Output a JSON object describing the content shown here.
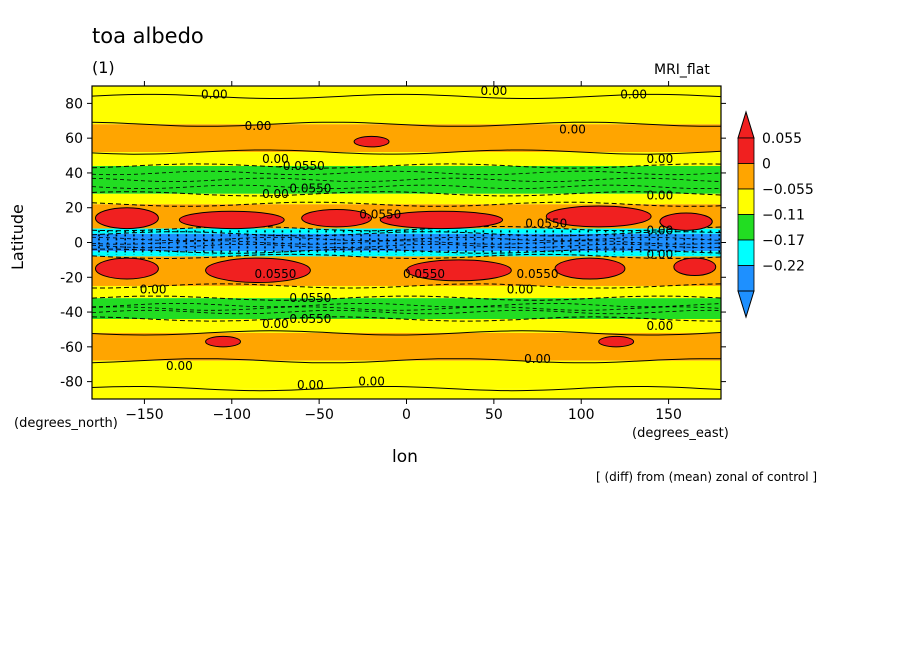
{
  "header": {
    "title": "toa albedo",
    "panel": "(1)",
    "model": "MRI_flat"
  },
  "axes": {
    "ylabel": "Latitude",
    "xlabel": "lon",
    "yunits": "(degrees_north)",
    "xunits": "(degrees_east)"
  },
  "footer": "[ (diff) from (mean) zonal of control ]",
  "chart_data": {
    "type": "heatmap",
    "subtype": "filled-contour",
    "title": "toa albedo",
    "xlabel": "lon",
    "ylabel": "Latitude",
    "xlim": [
      -180,
      180
    ],
    "ylim": [
      -90,
      90
    ],
    "xticks": [
      -150,
      -100,
      -50,
      0,
      50,
      100,
      150
    ],
    "yticks": [
      -80,
      -60,
      -40,
      -20,
      0,
      20,
      40,
      60,
      80
    ],
    "colors": {
      "high": "#f02020",
      "pos": "#ffa500",
      "neutral": "#ffff00",
      "neg1": "#22dd22",
      "neg2": "#00ffff",
      "neg3": "#1e90ff"
    },
    "colorbar": {
      "labels": [
        "0.055",
        "0",
        "-0.055",
        "-0.11",
        "-0.17",
        "-0.22"
      ],
      "segments": [
        {
          "name": "high",
          "color": "#f02020"
        },
        {
          "name": "pos",
          "color": "#ffa500"
        },
        {
          "name": "neutral",
          "color": "#ffff00"
        },
        {
          "name": "neg1",
          "color": "#22dd22"
        },
        {
          "name": "neg2",
          "color": "#00ffff"
        },
        {
          "name": "neg3",
          "color": "#1e90ff"
        }
      ]
    },
    "bands": [
      {
        "lat": [
          84,
          90
        ],
        "cls": "neutral"
      },
      {
        "lat": [
          68,
          84
        ],
        "cls": "neutral"
      },
      {
        "lat": [
          52,
          68
        ],
        "cls": "pos"
      },
      {
        "lat": [
          44,
          52
        ],
        "cls": "neutral"
      },
      {
        "lat": [
          28,
          44
        ],
        "cls": "neg1"
      },
      {
        "lat": [
          22,
          28
        ],
        "cls": "neutral"
      },
      {
        "lat": [
          8,
          22
        ],
        "cls": "pos"
      },
      {
        "lat": [
          5,
          8
        ],
        "cls": "neg2"
      },
      {
        "lat": [
          -5,
          5
        ],
        "cls": "neg3"
      },
      {
        "lat": [
          -8,
          -5
        ],
        "cls": "neg2"
      },
      {
        "lat": [
          -25,
          -8
        ],
        "cls": "pos"
      },
      {
        "lat": [
          -32,
          -25
        ],
        "cls": "neutral"
      },
      {
        "lat": [
          -44,
          -32
        ],
        "cls": "neg1"
      },
      {
        "lat": [
          -52,
          -44
        ],
        "cls": "neutral"
      },
      {
        "lat": [
          -68,
          -52
        ],
        "cls": "pos"
      },
      {
        "lat": [
          -84,
          -68
        ],
        "cls": "neutral"
      },
      {
        "lat": [
          -90,
          -84
        ],
        "cls": "neutral"
      }
    ],
    "blobs": [
      {
        "lon": -160,
        "lat": 14,
        "rlon": 18,
        "rlat": 6,
        "cls": "high"
      },
      {
        "lon": -100,
        "lat": 13,
        "rlon": 30,
        "rlat": 5,
        "cls": "high"
      },
      {
        "lon": -40,
        "lat": 14,
        "rlon": 20,
        "rlat": 5,
        "cls": "high"
      },
      {
        "lon": 20,
        "lat": 13,
        "rlon": 35,
        "rlat": 5,
        "cls": "high"
      },
      {
        "lon": 110,
        "lat": 15,
        "rlon": 30,
        "rlat": 6,
        "cls": "high"
      },
      {
        "lon": 160,
        "lat": 12,
        "rlon": 15,
        "rlat": 5,
        "cls": "high"
      },
      {
        "lon": -160,
        "lat": -15,
        "rlon": 18,
        "rlat": 6,
        "cls": "high"
      },
      {
        "lon": -85,
        "lat": -16,
        "rlon": 30,
        "rlat": 7,
        "cls": "high"
      },
      {
        "lon": 30,
        "lat": -16,
        "rlon": 30,
        "rlat": 6,
        "cls": "high"
      },
      {
        "lon": 105,
        "lat": -15,
        "rlon": 20,
        "rlat": 6,
        "cls": "high"
      },
      {
        "lon": 165,
        "lat": -14,
        "rlon": 12,
        "rlat": 5,
        "cls": "high"
      },
      {
        "lon": -20,
        "lat": 58,
        "rlon": 10,
        "rlat": 3,
        "cls": "high"
      },
      {
        "lon": -105,
        "lat": -57,
        "rlon": 10,
        "rlat": 3,
        "cls": "high"
      },
      {
        "lon": 120,
        "lat": -57,
        "rlon": 10,
        "rlat": 3,
        "cls": "high"
      }
    ],
    "contour_labels": [
      {
        "text": "0.00",
        "lon": -110,
        "lat": 85
      },
      {
        "text": "0.00",
        "lon": 50,
        "lat": 87
      },
      {
        "text": "0.00",
        "lon": 130,
        "lat": 85
      },
      {
        "text": "0.00",
        "lon": -85,
        "lat": 67
      },
      {
        "text": "0.00",
        "lon": 95,
        "lat": 65
      },
      {
        "text": "0.00",
        "lon": -75,
        "lat": 48
      },
      {
        "text": "0.00",
        "lon": 145,
        "lat": 48
      },
      {
        "text": "0.00",
        "lon": -75,
        "lat": 28
      },
      {
        "text": "0.00",
        "lon": 145,
        "lat": 27
      },
      {
        "text": "-0.0550",
        "lon": -60,
        "lat": 44
      },
      {
        "text": "0.0550",
        "lon": -55,
        "lat": 31
      },
      {
        "text": "0.0550",
        "lon": -15,
        "lat": 16
      },
      {
        "text": "0.0550",
        "lon": 80,
        "lat": 11
      },
      {
        "text": "0.00",
        "lon": 145,
        "lat": 7
      },
      {
        "text": "0.00",
        "lon": 145,
        "lat": -7
      },
      {
        "text": "0.0550",
        "lon": -75,
        "lat": -18
      },
      {
        "text": "0.0550",
        "lon": 10,
        "lat": -18
      },
      {
        "text": "0.0550",
        "lon": 75,
        "lat": -18
      },
      {
        "text": "0.00",
        "lon": -145,
        "lat": -27
      },
      {
        "text": "0.00",
        "lon": 65,
        "lat": -27
      },
      {
        "text": "0.0550",
        "lon": -55,
        "lat": -32
      },
      {
        "text": "0.0550",
        "lon": -55,
        "lat": -44
      },
      {
        "text": "0.00",
        "lon": 145,
        "lat": -48
      },
      {
        "text": "0.00",
        "lon": -75,
        "lat": -47
      },
      {
        "text": "0.00",
        "lon": -130,
        "lat": -71
      },
      {
        "text": "0.00",
        "lon": 75,
        "lat": -67
      },
      {
        "text": "0.00",
        "lon": -55,
        "lat": -82
      },
      {
        "text": "0.00",
        "lon": -20,
        "lat": -80
      }
    ]
  }
}
